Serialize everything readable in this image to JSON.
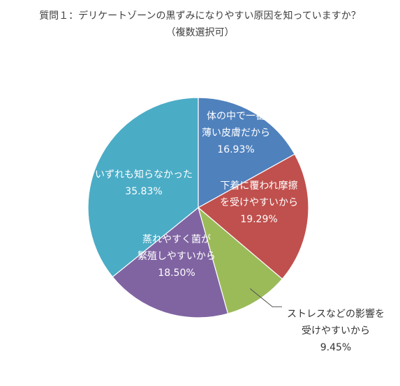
{
  "chart_data": {
    "type": "pie",
    "title": "質問１：デリケートゾーンの黒ずみになりやすい原因を知っていますか？",
    "subtitle": "（複数選択可）",
    "legend": "none",
    "slices": [
      {
        "label_lines": [
          "体の中で一番",
          "薄い皮膚だから"
        ],
        "value_label": "16.93%",
        "value": 16.93,
        "color": "#4f81bd"
      },
      {
        "label_lines": [
          "下着に覆われ摩擦",
          "を受けやすいから"
        ],
        "value_label": "19.29%",
        "value": 19.29,
        "color": "#c0504d"
      },
      {
        "label_lines": [
          "ストレスなどの影響を",
          "受けやすいから"
        ],
        "value_label": "9.45%",
        "value": 9.45,
        "color": "#9bbb59"
      },
      {
        "label_lines": [
          "蒸れやすく菌が",
          "繁殖しやすいから"
        ],
        "value_label": "18.50%",
        "value": 18.5,
        "color": "#8064a2"
      },
      {
        "label_lines": [
          "いずれも知らなかった"
        ],
        "value_label": "35.83%",
        "value": 35.83,
        "color": "#4bacc6"
      }
    ]
  }
}
